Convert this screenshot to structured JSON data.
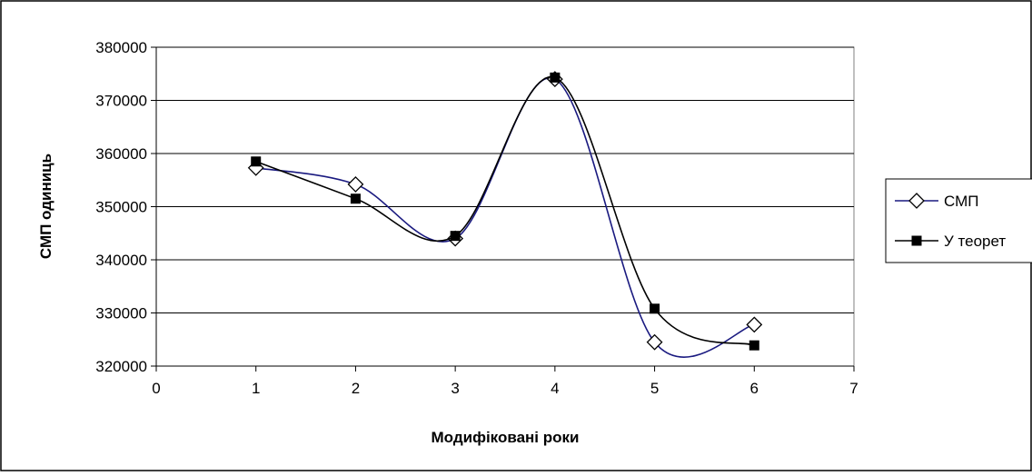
{
  "chart_data": {
    "type": "line",
    "title": "",
    "xlabel": "Модифіковані роки",
    "ylabel": "СМП одиниць",
    "xlim": [
      0,
      7
    ],
    "ylim": [
      320000,
      380000
    ],
    "x_ticks": [
      "0",
      "1",
      "2",
      "3",
      "4",
      "5",
      "6",
      "7"
    ],
    "y_ticks": [
      "320000",
      "330000",
      "340000",
      "350000",
      "360000",
      "370000",
      "380000"
    ],
    "grid": "horizontal",
    "legend_position": "right",
    "smooth": true,
    "series": [
      {
        "name": "СМП",
        "color": "#1a1a80",
        "marker": "diamond-open",
        "x": [
          1,
          2,
          3,
          4,
          5,
          6
        ],
        "y": [
          357300,
          354200,
          344000,
          374000,
          324500,
          327800
        ]
      },
      {
        "name": "У теорет",
        "color": "#000000",
        "marker": "square-filled",
        "x": [
          1,
          2,
          3,
          4,
          5,
          6
        ],
        "y": [
          358500,
          351500,
          344500,
          374300,
          330800,
          323900
        ]
      }
    ]
  }
}
